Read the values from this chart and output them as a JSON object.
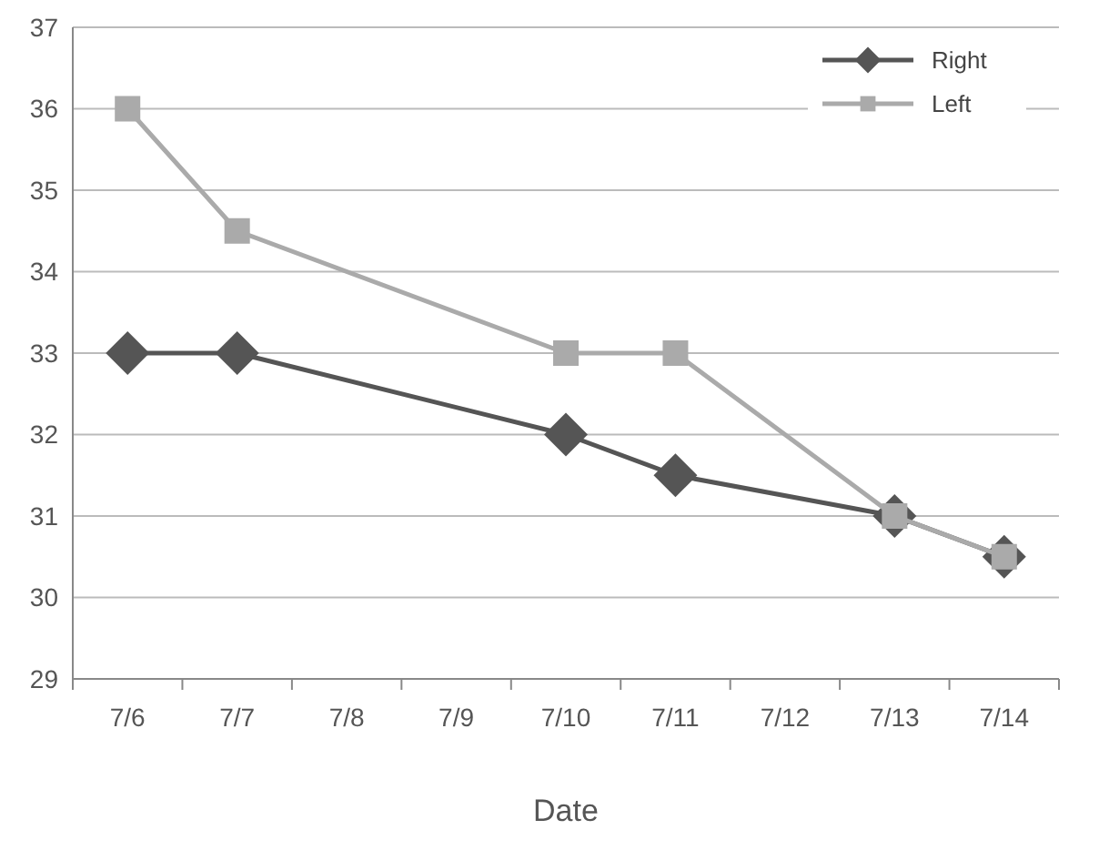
{
  "chart_data": {
    "type": "line",
    "xlabel": "Date",
    "categories": [
      "7/6",
      "7/7",
      "7/8",
      "7/9",
      "7/10",
      "7/11",
      "7/12",
      "7/13",
      "7/14"
    ],
    "series": [
      {
        "name": "Right",
        "color": "#555555",
        "marker": "diamond",
        "values": [
          33,
          33,
          null,
          null,
          32,
          31.5,
          null,
          31,
          30.5
        ]
      },
      {
        "name": "Left",
        "color": "#aaaaaa",
        "marker": "square",
        "values": [
          36,
          34.5,
          null,
          null,
          33,
          33,
          null,
          31,
          30.5
        ]
      }
    ],
    "ylim": [
      29,
      37
    ],
    "yticks": [
      29,
      30,
      31,
      32,
      33,
      34,
      35,
      36,
      37
    ],
    "grid": "y",
    "legend": "top right"
  }
}
